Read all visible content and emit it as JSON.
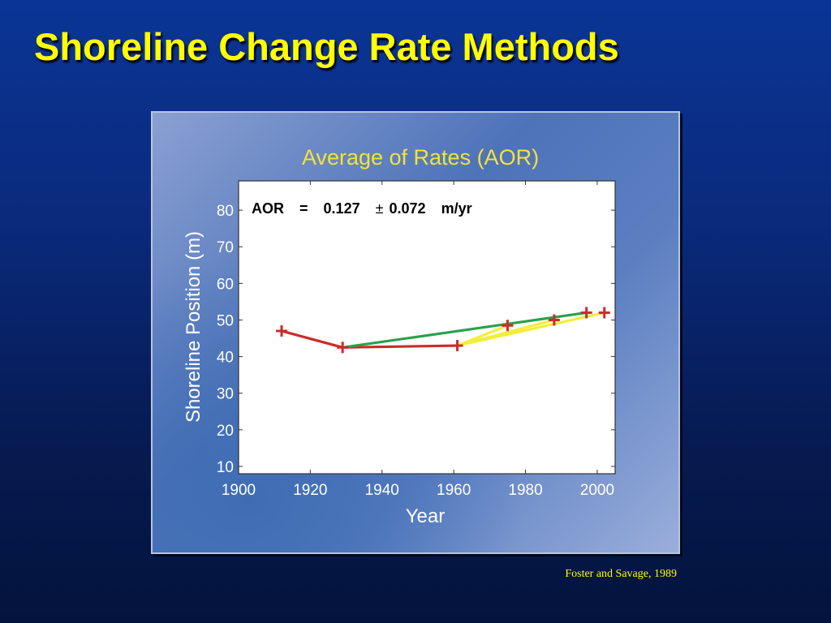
{
  "slide": {
    "title": "Shoreline Change Rate Methods",
    "citation": "Foster and Savage, 1989"
  },
  "colors": {
    "title": "#ffff00",
    "chart_title": "#f4e23a",
    "red_series": "#cc2b2b",
    "green_series": "#2aa14a",
    "yellow_series": "#f2ee3a"
  },
  "chart_data": {
    "type": "line",
    "title": "Average of Rates (AOR)",
    "xlabel": "Year",
    "ylabel": "Shoreline Position (m)",
    "xlim": [
      1900,
      2005
    ],
    "ylim": [
      8,
      88
    ],
    "x_ticks": [
      1900,
      1920,
      1940,
      1960,
      1980,
      2000
    ],
    "y_ticks": [
      10,
      20,
      30,
      40,
      50,
      60,
      70,
      80
    ],
    "grid": false,
    "annotation": {
      "label": "AOR",
      "eq": "=",
      "value": "0.127",
      "pm": "±",
      "error": "0.072",
      "unit": "m/yr"
    },
    "points": [
      {
        "x": 1912,
        "y": 47
      },
      {
        "x": 1929,
        "y": 42.5
      },
      {
        "x": 1961,
        "y": 43
      },
      {
        "x": 1975,
        "y": 48.5
      },
      {
        "x": 1988,
        "y": 50
      },
      {
        "x": 1997,
        "y": 52
      },
      {
        "x": 2002,
        "y": 52
      }
    ],
    "series": [
      {
        "color": "#cc2b2b",
        "x": [
          1912,
          1929,
          1961
        ],
        "y": [
          47,
          42.5,
          43
        ]
      },
      {
        "color": "#2aa14a",
        "x": [
          1929,
          1997
        ],
        "y": [
          42.5,
          52
        ]
      },
      {
        "color": "#f2ee3a",
        "x": [
          1961,
          1975
        ],
        "y": [
          43,
          48.5
        ]
      },
      {
        "color": "#f2ee3a",
        "x": [
          1961,
          1988
        ],
        "y": [
          43,
          50
        ]
      },
      {
        "color": "#f2ee3a",
        "x": [
          1961,
          2002
        ],
        "y": [
          43,
          52
        ]
      }
    ]
  }
}
